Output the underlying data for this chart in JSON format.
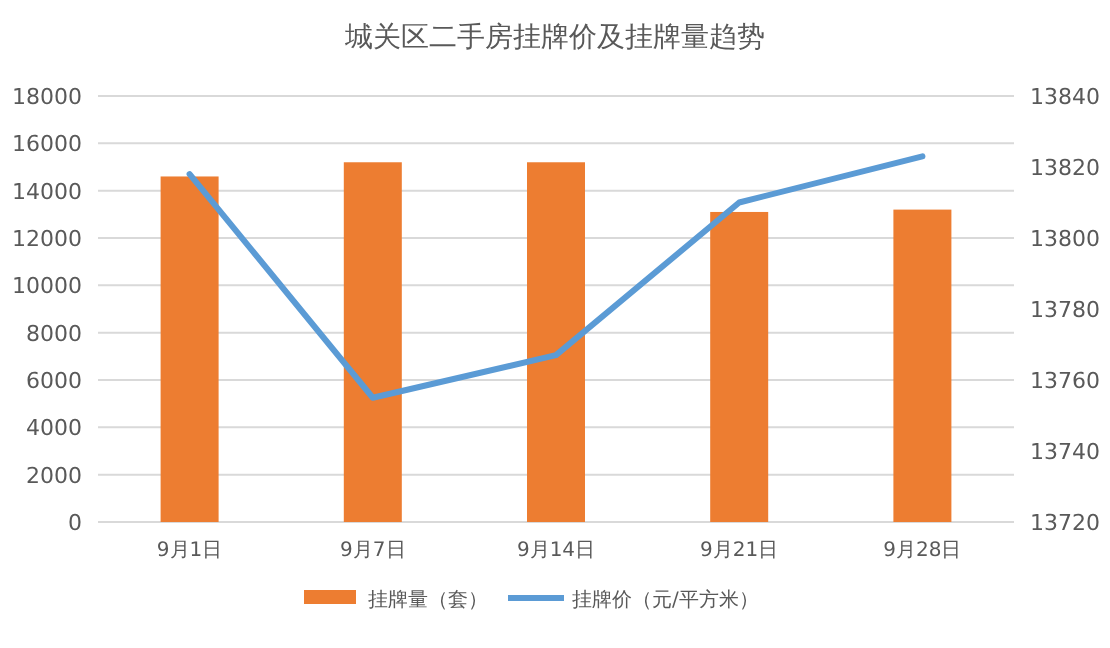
{
  "chart_data": {
    "type": "bar",
    "title": "城关区二手房挂牌价及挂牌量趋势",
    "categories": [
      "9月1日",
      "9月7日",
      "9月14日",
      "9月21日",
      "9月28日"
    ],
    "series": [
      {
        "name": "挂牌量（套）",
        "color": "#ed7d31",
        "values": [
          14600,
          15200,
          15200,
          13100,
          13200
        ]
      },
      {
        "name": "挂牌价（元/平方米）",
        "type": "line",
        "axis": "y2",
        "color": "#5b9bd5",
        "values": [
          13818,
          13755,
          13767,
          13810,
          13823
        ]
      }
    ],
    "ylim": [
      0,
      18000
    ],
    "yticks": [
      0,
      2000,
      4000,
      6000,
      8000,
      10000,
      12000,
      14000,
      16000,
      18000
    ],
    "y2lim": [
      13720,
      13840
    ],
    "y2ticks": [
      13720,
      13740,
      13760,
      13780,
      13800,
      13820,
      13840
    ],
    "grid": "y",
    "legend": "bottom",
    "marker": "none"
  }
}
